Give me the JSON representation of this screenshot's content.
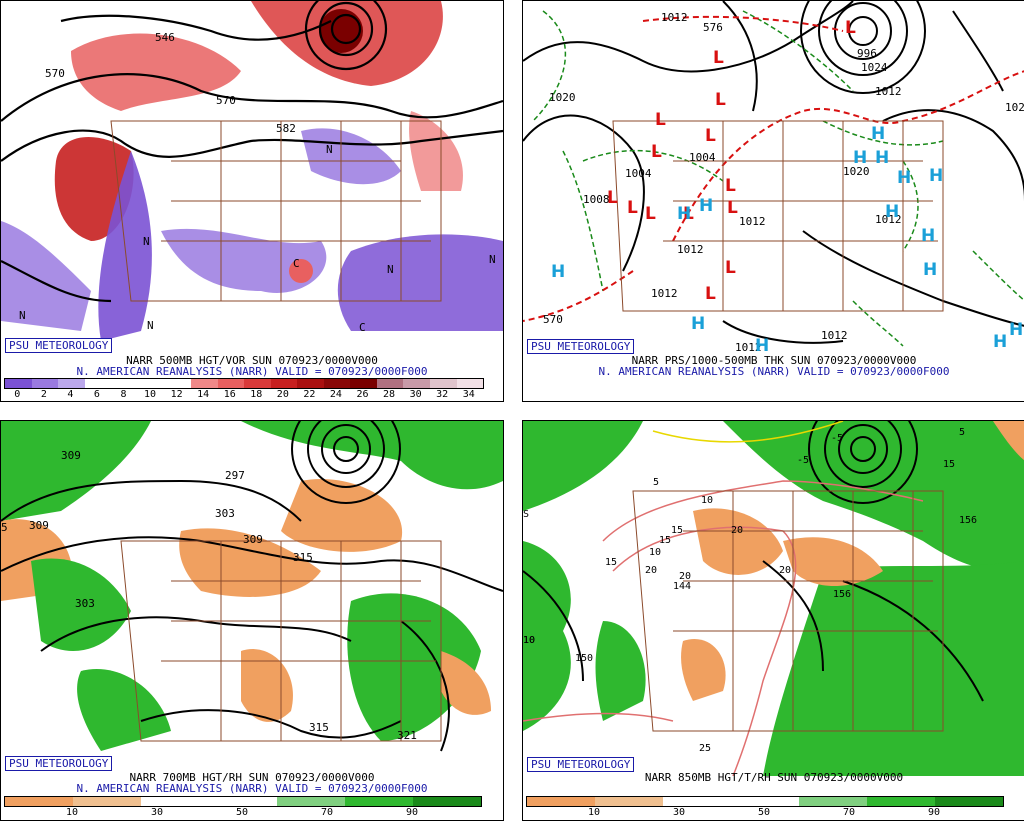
{
  "panels": [
    {
      "id": "p500",
      "brand": "PSU METEOROLOGY",
      "caption1": "NARR 500MB HGT/VOR SUN 070923/0000V000",
      "caption2": "N. AMERICAN REANALYSIS (NARR) VALID = 070923/0000F000",
      "colorbar": {
        "labels": [
          "0",
          "2",
          "4",
          "6",
          "8",
          "10",
          "12",
          "14",
          "16",
          "18",
          "20",
          "22",
          "24",
          "26",
          "28",
          "30",
          "32",
          "34"
        ],
        "colors": [
          "#7b52d4",
          "#9a7ae0",
          "#bba8ec",
          "#ffffff",
          "#ffffff",
          "#ffffff",
          "#ffffff",
          "#f08888",
          "#e86060",
          "#d93a3a",
          "#c72020",
          "#aa1010",
          "#8a0808",
          "#7a0000",
          "#b07080",
          "#c89aa8",
          "#e0c4cc",
          "#f2e0e6"
        ]
      },
      "contour_labels": [
        "546",
        "570",
        "570",
        "582",
        "N",
        "N",
        "N",
        "N",
        "N",
        "N",
        "C",
        "C"
      ]
    },
    {
      "id": "psfc",
      "brand": "PSU METEOROLOGY",
      "caption1": "NARR PRS/1000-500MB THK SUN 070923/0000V000",
      "caption2": "N. AMERICAN REANALYSIS (NARR) VALID = 070923/0000F000",
      "contour_labels": [
        "1012",
        "1020",
        "1004",
        "1004",
        "1012",
        "1012",
        "1012",
        "1012",
        "1008",
        "996",
        "1024",
        "1012",
        "1020",
        "1020",
        "1012",
        "1012",
        "570",
        "576"
      ],
      "lows": [
        "L",
        "L",
        "L",
        "L",
        "L",
        "L",
        "L",
        "L",
        "L",
        "L",
        "L",
        "L",
        "L",
        "L"
      ],
      "highs": [
        "H",
        "H",
        "H",
        "H",
        "H",
        "H",
        "H",
        "H",
        "H",
        "H",
        "H",
        "H",
        "H",
        "H",
        "H"
      ]
    },
    {
      "id": "p700",
      "brand": "PSU METEOROLOGY",
      "caption1": "NARR 700MB HGT/RH SUN 070923/0000V000",
      "caption2": "N. AMERICAN REANALYSIS (NARR) VALID = 070923/0000F000",
      "colorbar": {
        "labels": [
          "10",
          "30",
          "50",
          "70",
          "90"
        ],
        "colors": [
          "#f0a060",
          "#f0c090",
          "#ffffff",
          "#ffffff",
          "#80d080",
          "#2fb82f",
          "#1a8a1a"
        ]
      },
      "contour_labels": [
        "309",
        "309",
        "297",
        "303",
        "309",
        "315",
        "303",
        "315",
        "321",
        "5"
      ]
    },
    {
      "id": "p850",
      "brand": "PSU METEOROLOGY",
      "caption1": "NARR 850MB HGT/T/RH SUN 070923/0000V000",
      "colorbar": {
        "labels": [
          "10",
          "30",
          "50",
          "70",
          "90"
        ],
        "colors": [
          "#f0a060",
          "#f0c090",
          "#ffffff",
          "#ffffff",
          "#80d080",
          "#2fb82f",
          "#1a8a1a"
        ]
      },
      "contour_labels": [
        "-5",
        "-5",
        "5",
        "15",
        "5",
        "15",
        "10",
        "20",
        "10",
        "15",
        "20",
        "20",
        "15",
        "20",
        "10",
        "25",
        "150",
        "156",
        "144",
        "156",
        "S",
        "10"
      ]
    }
  ]
}
